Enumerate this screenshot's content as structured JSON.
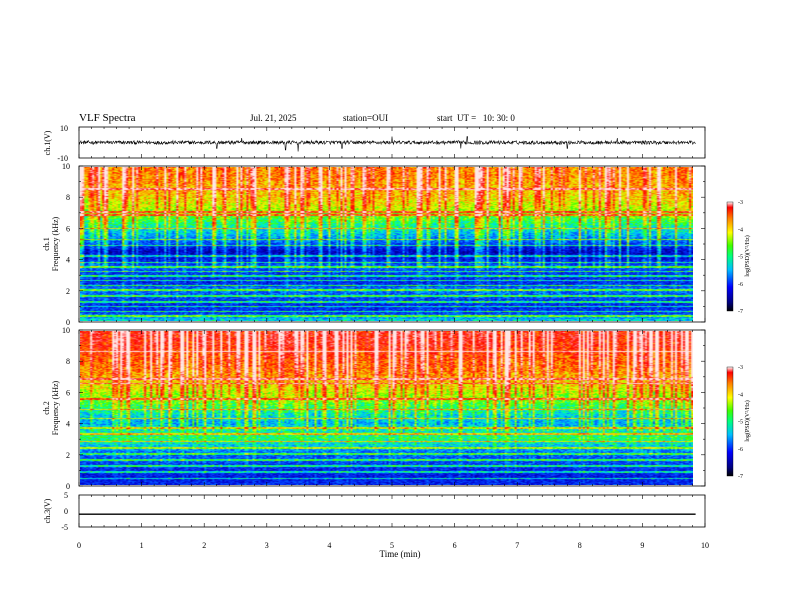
{
  "header": {
    "title": "VLF Spectra",
    "date": "Jul. 21, 2025",
    "station": "station=OUI",
    "start": "start  UT =   10: 30: 0"
  },
  "chart_data": [
    {
      "type": "line",
      "panel": "ch1-waveform",
      "ylabel": "ch.1(V)",
      "yticks": [
        "10",
        "-10"
      ],
      "ylim": [
        -10,
        10
      ],
      "series": [
        {
          "baseline": 0,
          "approx_noise_amplitude": 1.2,
          "spikes": [
            {
              "x": 2.2,
              "y": -4
            },
            {
              "x": 2.6,
              "y": 3
            },
            {
              "x": 3.3,
              "y": -5
            },
            {
              "x": 3.5,
              "y": -6
            },
            {
              "x": 4.2,
              "y": -4
            },
            {
              "x": 5.0,
              "y": 4
            },
            {
              "x": 6.1,
              "y": -4
            },
            {
              "x": 6.2,
              "y": 4
            },
            {
              "x": 7.8,
              "y": -4
            },
            {
              "x": 8.6,
              "y": 3
            }
          ]
        }
      ],
      "color": "#000000"
    },
    {
      "type": "heatmap",
      "panel": "ch1-spectrogram",
      "ylabel": "ch.1\nFrequency (kHz)",
      "yticks": [
        "0",
        "2",
        "4",
        "6",
        "8",
        "10"
      ],
      "ylim": [
        0,
        10
      ],
      "xlim": [
        0,
        9.85
      ],
      "colorbar": {
        "label": "log(PSD)(V²/Hz)",
        "ticks": [
          "-3",
          "-4",
          "-5",
          "-6",
          "-7"
        ],
        "range": [
          -7,
          -3
        ]
      },
      "profile_freq_khz": [
        0,
        0.5,
        1,
        1.5,
        2,
        2.5,
        3,
        3.5,
        4,
        4.5,
        5,
        5.5,
        6,
        6.5,
        7,
        7.5,
        8,
        8.5,
        9,
        9.5,
        10
      ],
      "profile_log_psd": [
        -5.4,
        -6.1,
        -6.2,
        -6.0,
        -5.8,
        -6.2,
        -6.1,
        -5.9,
        -6.3,
        -6.5,
        -6.0,
        -5.6,
        -5.3,
        -5.0,
        -4.7,
        -4.5,
        -4.3,
        -4.2,
        -4.1,
        -4.0,
        -4.0
      ],
      "tone_lines_khz": [
        0.3,
        0.6,
        0.9,
        1.2,
        1.6,
        2.0,
        2.3,
        2.6,
        2.9,
        3.2,
        3.5,
        3.8,
        4.2,
        4.9,
        5.3,
        6.0,
        6.9,
        7.1,
        8.6
      ],
      "colors": [
        "#000080",
        "#0000ff",
        "#00bfff",
        "#00ffb0",
        "#40ff00",
        "#ffff00",
        "#ff8000",
        "#ff0000",
        "#ffffff"
      ]
    },
    {
      "type": "heatmap",
      "panel": "ch2-spectrogram",
      "ylabel": "ch.2\nFrequency (kHz)",
      "yticks": [
        "0",
        "2",
        "4",
        "6",
        "8",
        "10"
      ],
      "ylim": [
        0,
        10
      ],
      "xlim": [
        0,
        9.85
      ],
      "colorbar": {
        "label": "log(PSD)(V²/Hz)",
        "ticks": [
          "-3",
          "-4",
          "-5",
          "-6",
          "-7"
        ],
        "range": [
          -7,
          -3
        ]
      },
      "profile_freq_khz": [
        0,
        0.5,
        1,
        1.5,
        2,
        2.5,
        3,
        3.5,
        4,
        4.5,
        5,
        5.5,
        6,
        6.5,
        7,
        7.5,
        8,
        8.5,
        9,
        9.5,
        10
      ],
      "profile_log_psd": [
        -6.2,
        -6.3,
        -6.2,
        -6.0,
        -5.9,
        -5.5,
        -5.1,
        -5.3,
        -5.6,
        -5.4,
        -5.1,
        -4.8,
        -4.6,
        -4.4,
        -4.2,
        -4.0,
        -3.9,
        -3.8,
        -3.7,
        -3.6,
        -3.6
      ],
      "tone_lines_khz": [
        0.4,
        0.8,
        1.2,
        1.6,
        2.0,
        2.4,
        2.8,
        3.3,
        3.7,
        4.3,
        4.9,
        5.6,
        6.6,
        6.9,
        8.7
      ],
      "colors": [
        "#000080",
        "#0000ff",
        "#00bfff",
        "#00ffb0",
        "#40ff00",
        "#ffff00",
        "#ff8000",
        "#ff0000",
        "#ffffff"
      ]
    },
    {
      "type": "line",
      "panel": "ch3-waveform",
      "ylabel": "ch.3(V)",
      "yticks": [
        "5",
        "0",
        "-5"
      ],
      "ylim": [
        -5,
        5
      ],
      "series": [
        {
          "constant": -1
        }
      ],
      "color": "#000000"
    }
  ],
  "xaxis": {
    "label": "Time (min)",
    "ticks": [
      "0",
      "1",
      "2",
      "3",
      "4",
      "5",
      "6",
      "7",
      "8",
      "9",
      "10"
    ],
    "xlim": [
      0,
      10
    ]
  }
}
